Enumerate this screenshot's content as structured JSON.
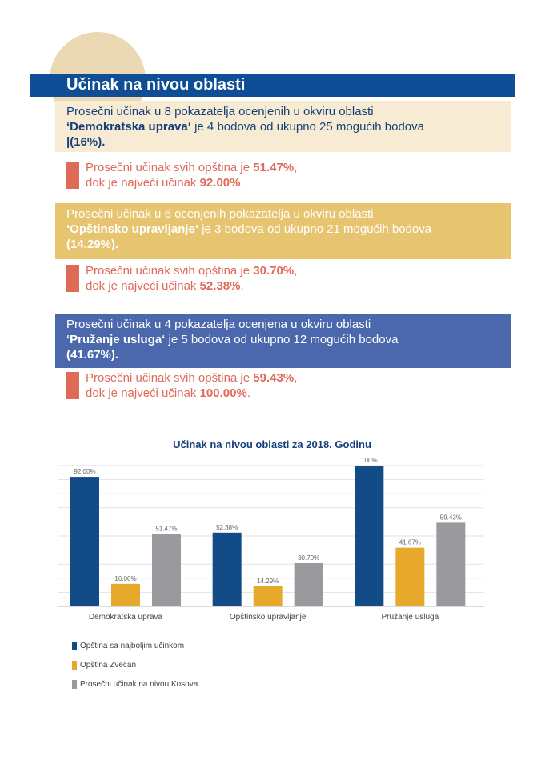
{
  "title": "Učinak na nivou oblasti",
  "blocks": [
    {
      "pre": "Prosečni učinak u 8 pokazatelja ocenjenih u okviru oblasti",
      "name": "‘Demokratska uprava‘",
      "mid": " je 4 bodova od ukupno 25 mogućih bodova",
      "pct": "|(16%)."
    },
    {
      "pre": "Prosečni učinak u 6 ocenjenih pokazatelja u okviru oblasti",
      "name": "‘Opštinsko upravljanje‘",
      "mid": " je 3 bodova od ukupno 21 mogućih bodova",
      "pct": "(14.29%)."
    },
    {
      "pre": "Prosečni učinak u 4 pokazatelja ocenjena u okviru oblasti",
      "name": "‘Pružanje usluga‘",
      "mid": " je 5 bodova od ukupno 12 mogućih bodova",
      "pct": "(41.67%)."
    }
  ],
  "stats": [
    {
      "l1": "Prosečni učinak svih opština je ",
      "v1": "51.47%",
      "c1": ",",
      "l2": "dok je najveći učinak ",
      "v2": "92.00%",
      "c2": "."
    },
    {
      "l1": "Prosečni učinak svih opština je ",
      "v1": "30.70%",
      "c1": ",",
      "l2": "dok je najveći učinak ",
      "v2": "52.38%",
      "c2": "."
    },
    {
      "l1": "Prosečni učinak svih opština je ",
      "v1": "59.43%",
      "c1": ",",
      "l2": "dok je najveći učinak ",
      "v2": "100.00%",
      "c2": "."
    }
  ],
  "chart_data": {
    "type": "bar",
    "title": "Učinak na nivou oblasti za 2018. Godinu",
    "categories": [
      "Demokratska uprava",
      "Opštinsko upravljanje",
      "Pružanje usluga"
    ],
    "series": [
      {
        "name": "Opština sa najboljim učinkom",
        "values": [
          92.0,
          52.38,
          100
        ],
        "labels": [
          "92.00%",
          "52.38%",
          "100%"
        ],
        "color": "#134b86"
      },
      {
        "name": "Opština Zvečan",
        "values": [
          16.0,
          14.29,
          41.67
        ],
        "labels": [
          "16.00%",
          "14.29%",
          "41.67%"
        ],
        "color": "#e6a92c"
      },
      {
        "name": "Prosečni učinak na nivou Kosova",
        "values": [
          51.47,
          30.7,
          59.43
        ],
        "labels": [
          "51.47%",
          "30.70%",
          "59.43%"
        ],
        "color": "#9a9a9e"
      }
    ],
    "ylim": [
      0,
      100
    ],
    "grid": true,
    "legend": "bottom-left"
  }
}
